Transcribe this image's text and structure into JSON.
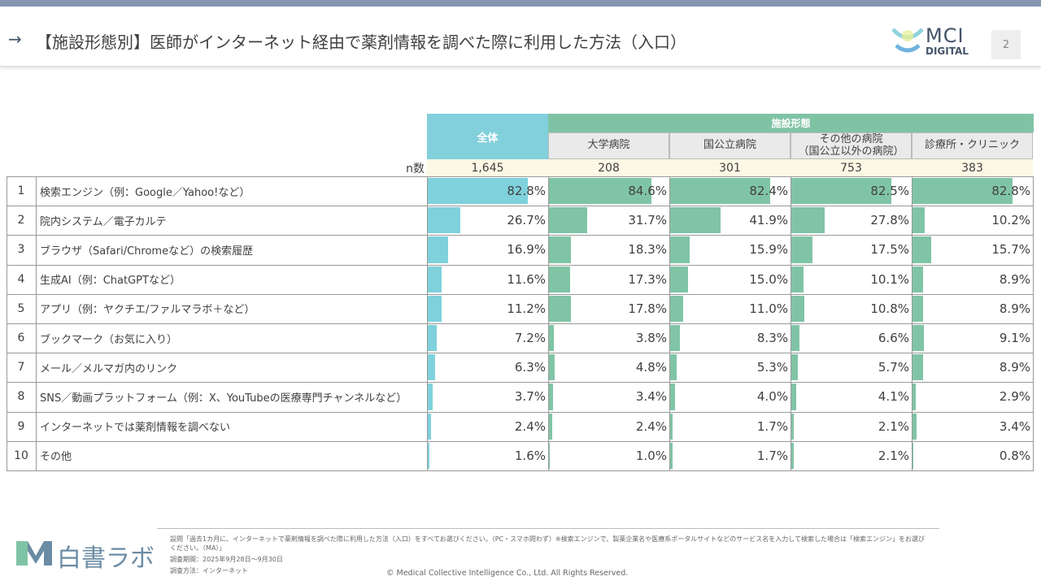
{
  "header": {
    "title": "【施設形態別】医師がインターネット経由で薬剤情報を調べた際に利用した方法（入口）",
    "page_number": "2",
    "logo_text_top": "MCI",
    "logo_text_bottom": "DIGITAL"
  },
  "table": {
    "total_header": "全体",
    "group_header": "施設形態",
    "columns": [
      "大学病院",
      "国公立病院",
      "その他の病院\n（国公立以外の病院）",
      "診療所・クリニック"
    ],
    "n_label": "n数",
    "n_values": [
      "1,645",
      "208",
      "301",
      "753",
      "383"
    ],
    "colors": {
      "total": "#7fd1dc",
      "facility": "#80c4a6"
    },
    "rows": [
      {
        "no": "1",
        "label": "検索エンジン（例：Google／Yahoo!など）",
        "values": [
          82.8,
          84.6,
          82.4,
          82.5,
          82.8
        ]
      },
      {
        "no": "2",
        "label": "院内システム／電子カルテ",
        "values": [
          26.7,
          31.7,
          41.9,
          27.8,
          10.2
        ]
      },
      {
        "no": "3",
        "label": "ブラウザ（Safari/Chromeなど）の検索履歴",
        "values": [
          16.9,
          18.3,
          15.9,
          17.5,
          15.7
        ]
      },
      {
        "no": "4",
        "label": "生成AI（例：ChatGPTなど）",
        "values": [
          11.6,
          17.3,
          15.0,
          10.1,
          8.9
        ]
      },
      {
        "no": "5",
        "label": "アプリ（例：ヤクチエ/ファルマラボ＋など）",
        "values": [
          11.2,
          17.8,
          11.0,
          10.8,
          8.9
        ]
      },
      {
        "no": "6",
        "label": "ブックマーク（お気に入り）",
        "values": [
          7.2,
          3.8,
          8.3,
          6.6,
          9.1
        ]
      },
      {
        "no": "7",
        "label": "メール／メルマガ内のリンク",
        "values": [
          6.3,
          4.8,
          5.3,
          5.7,
          8.9
        ]
      },
      {
        "no": "8",
        "label": "SNS／動画プラットフォーム（例：X、YouTubeの医療専門チャンネルなど）",
        "values": [
          3.7,
          3.4,
          4.0,
          4.1,
          2.9
        ]
      },
      {
        "no": "9",
        "label": "インターネットでは薬剤情報を調べない",
        "values": [
          2.4,
          2.4,
          1.7,
          2.1,
          3.4
        ]
      },
      {
        "no": "10",
        "label": "その他",
        "values": [
          1.6,
          1.0,
          1.7,
          2.1,
          0.8
        ]
      }
    ]
  },
  "footer": {
    "question": "設問「過去1カ月に、インターネットで薬剤情報を調べた際に利用した方法（入口）をすべてお選びください。（PC・スマホ問わず）※検索エンジンで、製薬企業名や医療系ポータルサイトなどのサービス名を入力して検索した場合は「検索エンジン」をお選び",
    "question2": "ください。（MA）」",
    "period": "調査期間：2025年9月28日～9月30日",
    "method": "調査方法：インターネット",
    "copyright": "©  Medical Collective Intelligence Co., Ltd.  All Rights Reserved.",
    "brand": "白書ラボ"
  }
}
